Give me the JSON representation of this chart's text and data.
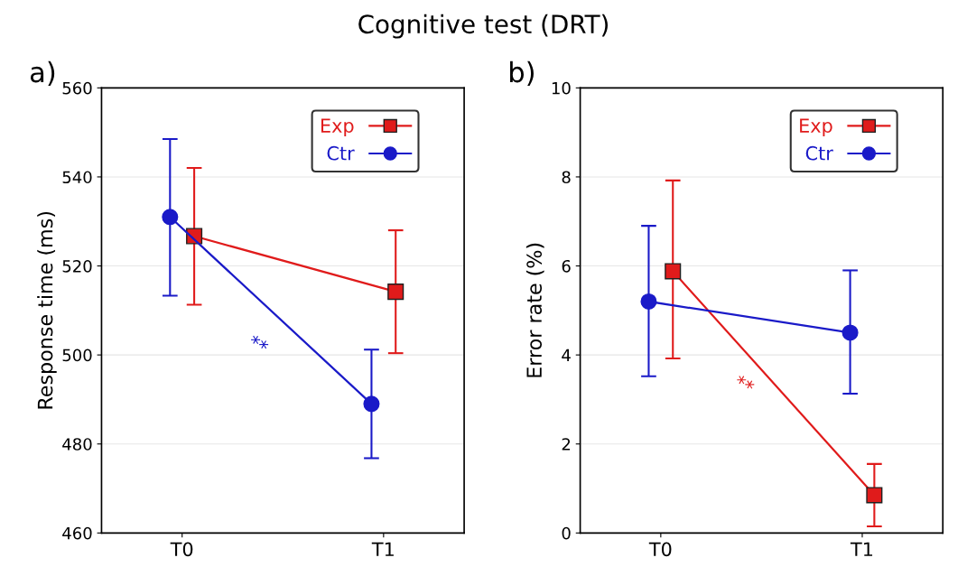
{
  "chart_data": [
    {
      "type": "line",
      "title": "Cognitive test (DRT)",
      "ylabel": "Response time (ms)",
      "annotations": [
        "a)",
        "**"
      ],
      "categories": [
        "T0",
        "T1"
      ],
      "ylim": [
        460,
        560
      ],
      "yticks": [
        460,
        480,
        500,
        520,
        540,
        560
      ],
      "grid": "y",
      "legend": "top right",
      "series": [
        {
          "name": "Exp",
          "color": "#e01b1b",
          "marker": "square",
          "values": [
            526.7,
            514.2
          ],
          "errors": [
            [
              511.3,
              542
            ],
            [
              500.4,
              528
            ]
          ]
        },
        {
          "name": "Ctr",
          "color": "#1a1ac8",
          "marker": "circle",
          "values": [
            531,
            489
          ],
          "errors": [
            [
              513.3,
              548.5
            ],
            [
              476.8,
              501.2
            ]
          ]
        }
      ]
    },
    {
      "type": "line",
      "ylabel": "Error rate (%)",
      "annotations": [
        "b)",
        "**"
      ],
      "categories": [
        "T0",
        "T1"
      ],
      "ylim": [
        0,
        10
      ],
      "yticks": [
        0,
        2,
        4,
        6,
        8,
        10
      ],
      "grid": "y",
      "legend": "top right",
      "series": [
        {
          "name": "Exp",
          "color": "#e01b1b",
          "marker": "square",
          "values": [
            5.88,
            0.85
          ],
          "errors": [
            [
              3.92,
              7.92
            ],
            [
              0.15,
              1.55
            ]
          ]
        },
        {
          "name": "Ctr",
          "color": "#1a1ac8",
          "marker": "circle",
          "values": [
            5.2,
            4.5
          ],
          "errors": [
            [
              3.52,
              6.9
            ],
            [
              3.13,
              5.9
            ]
          ]
        }
      ]
    }
  ]
}
